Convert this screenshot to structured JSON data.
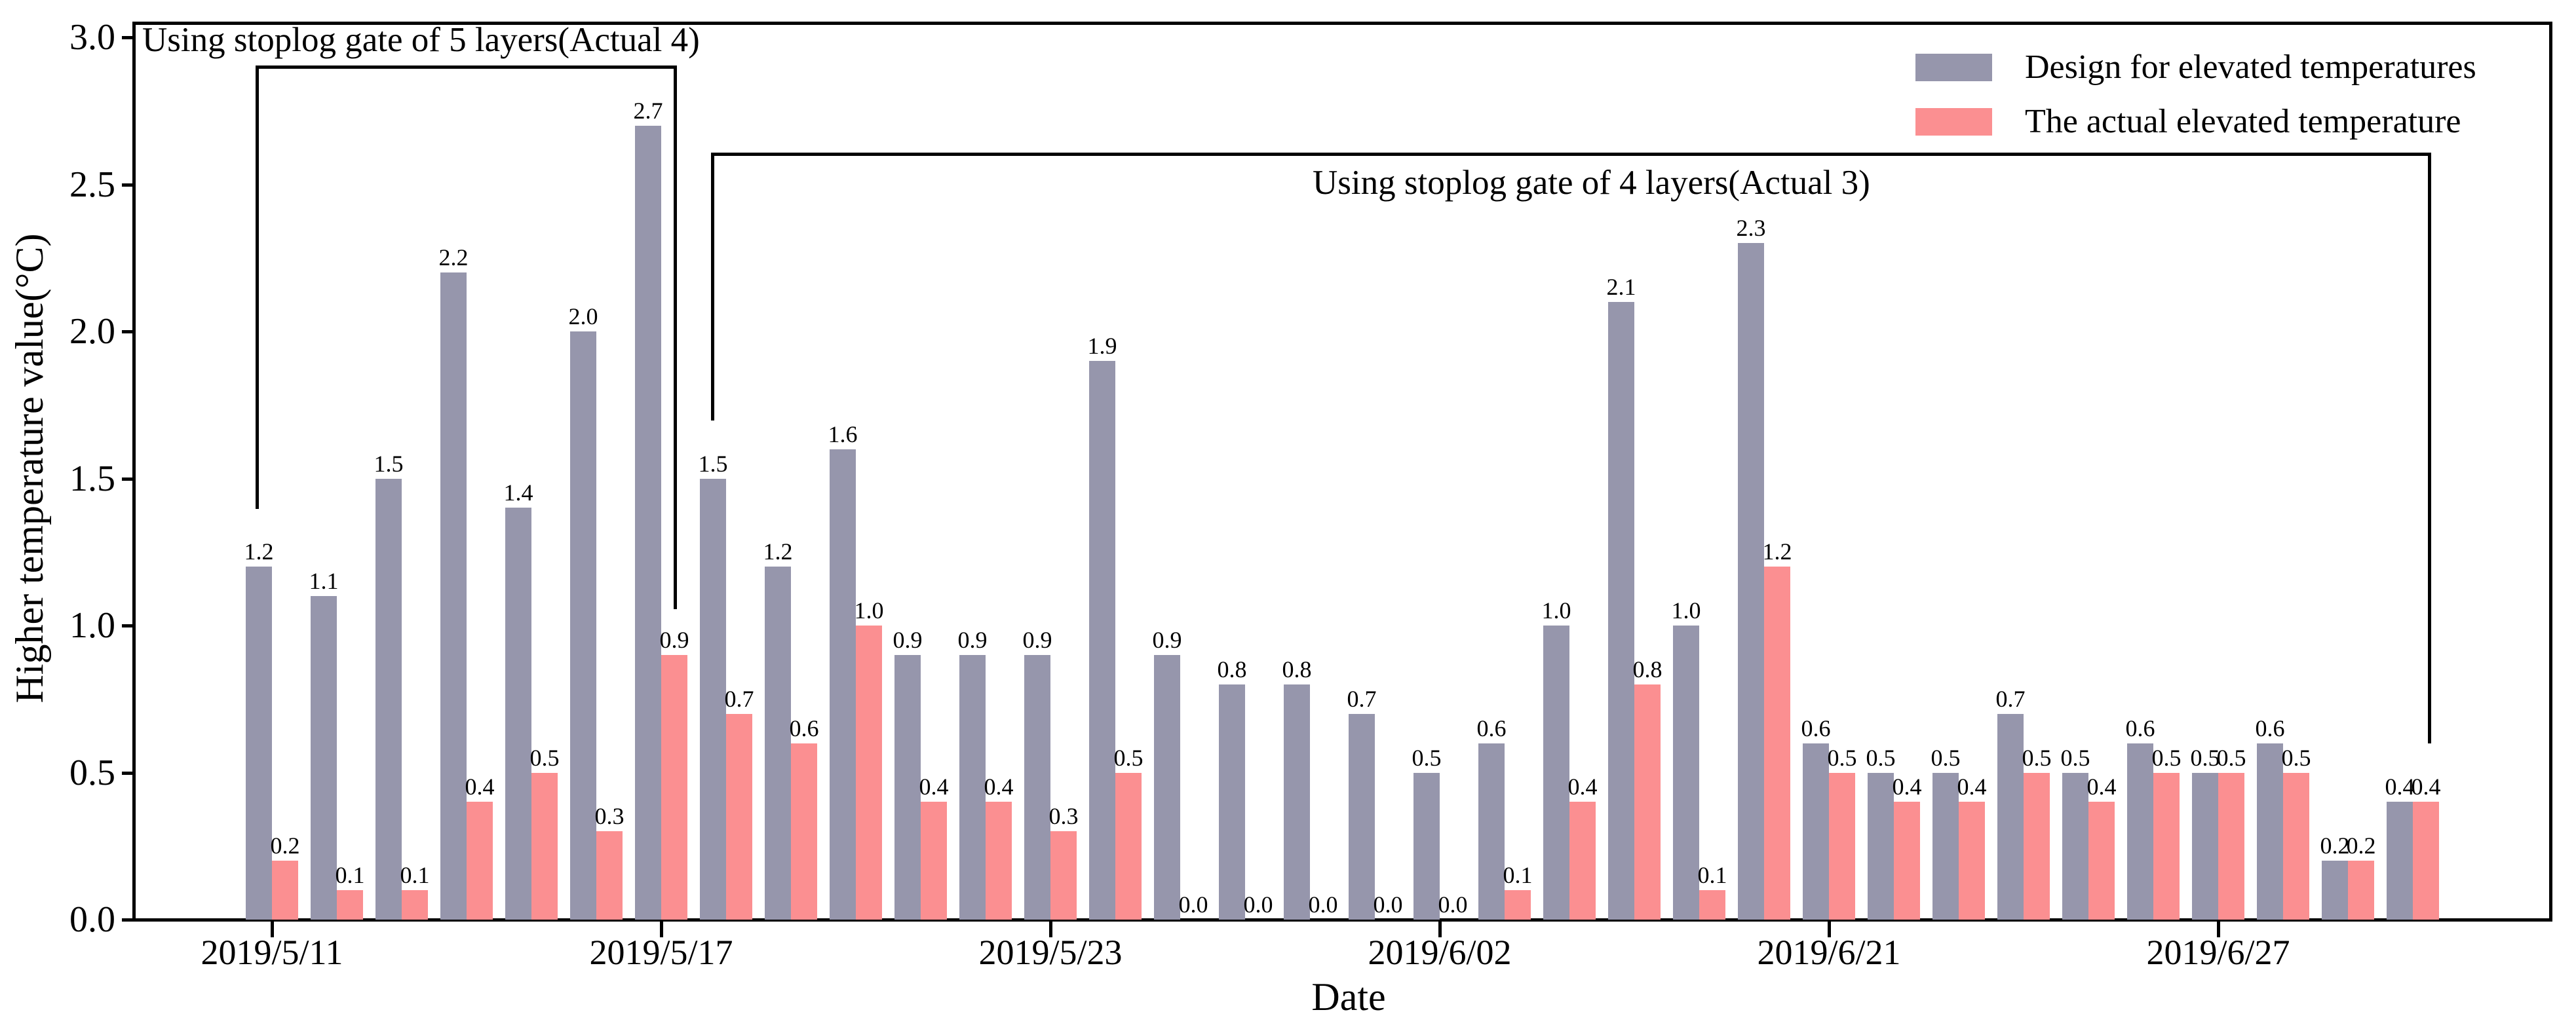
{
  "chart_data": {
    "type": "bar",
    "title": "",
    "xlabel": "Date",
    "ylabel": "Higher temperature value(°C)",
    "ylim": [
      0.0,
      3.05
    ],
    "ytick_labels": [
      "0.0",
      "0.5",
      "1.0",
      "1.5",
      "2.0",
      "2.5",
      "3.0"
    ],
    "n_groups": 34,
    "grid": false,
    "bar_label_decimals": 1,
    "xticks": [
      {
        "group": 1,
        "label": "2019/5/11"
      },
      {
        "group": 7,
        "label": "2019/5/17"
      },
      {
        "group": 13,
        "label": "2019/5/23"
      },
      {
        "group": 19,
        "label": "2019/6/02"
      },
      {
        "group": 25,
        "label": "2019/6/21"
      },
      {
        "group": 31,
        "label": "2019/6/27"
      }
    ],
    "series": [
      {
        "name": "Design for elevated temperatures",
        "color": "#9696ac",
        "values": [
          1.2,
          1.1,
          1.5,
          2.2,
          1.4,
          2.0,
          2.7,
          1.5,
          1.2,
          1.6,
          0.9,
          0.9,
          0.9,
          1.9,
          0.9,
          0.8,
          0.8,
          0.7,
          0.5,
          0.6,
          1.0,
          2.1,
          1.0,
          2.3,
          0.6,
          0.5,
          0.5,
          0.7,
          0.5,
          0.6,
          0.5,
          0.6,
          0.2,
          0.4
        ]
      },
      {
        "name": "The actual elevated temperature",
        "color": "#fb8f91",
        "values": [
          0.2,
          0.1,
          0.1,
          0.4,
          0.5,
          0.3,
          0.9,
          0.7,
          0.6,
          1.0,
          0.4,
          0.4,
          0.3,
          0.5,
          0.0,
          0.0,
          0.0,
          0.0,
          0.0,
          0.1,
          0.4,
          0.8,
          0.1,
          1.2,
          0.5,
          0.4,
          0.4,
          0.5,
          0.4,
          0.5,
          0.5,
          0.5,
          0.2,
          0.4
        ]
      }
    ],
    "legend": {
      "position": "upper right"
    },
    "annotations": [
      {
        "id": "gate5",
        "text": "Using stoplog gate of 5 layers(Actual 4)",
        "covers_groups": [
          1,
          7
        ]
      },
      {
        "id": "gate4",
        "text": "Using stoplog gate of 4 layers(Actual 3)",
        "covers_groups": [
          8,
          34
        ]
      }
    ],
    "axis_color": "#000000",
    "text_color": "#000000"
  }
}
